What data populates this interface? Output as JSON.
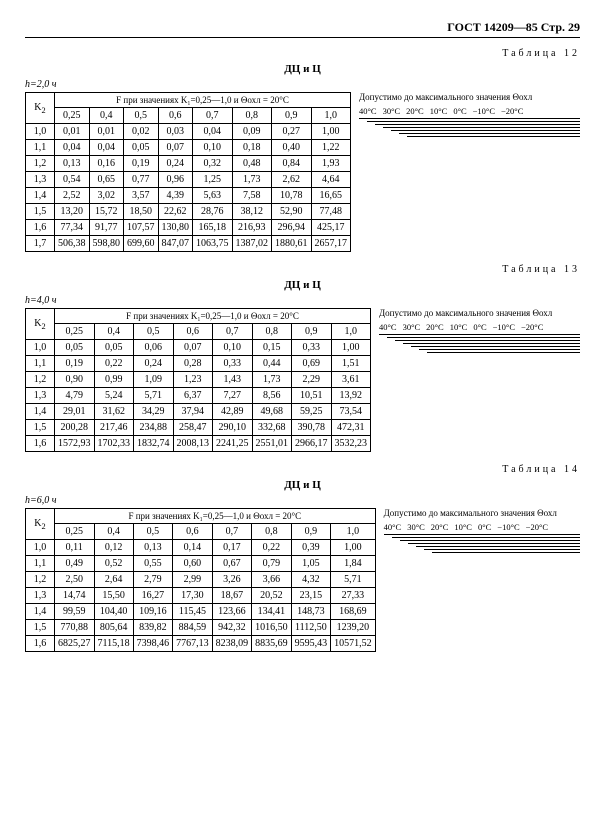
{
  "page": {
    "header": "ГОСТ 14209—85 Стр. 29"
  },
  "legend_text": "Допустимо до максимального значения Θохл",
  "temps": [
    "40°C",
    "30°C",
    "20°C",
    "10°C",
    "0°C",
    "−10°C",
    "−20°C"
  ],
  "tables": [
    {
      "label": "Таблица 12",
      "title": "ДЦ и Ц",
      "h": "h=2,0 ч",
      "fheader": "F при значениях K₁=0,25—1,0 и Θохл = 20°С",
      "cols": [
        "0,25",
        "0,4",
        "0,5",
        "0,6",
        "0,7",
        "0,8",
        "0,9",
        "1,0"
      ],
      "k2": [
        "1,0",
        "1,1",
        "1,2",
        "1,3",
        "1,4",
        "1,5",
        "1,6",
        "1,7"
      ],
      "rows": [
        [
          "0,01",
          "0,01",
          "0,02",
          "0,03",
          "0,04",
          "0,09",
          "0,27",
          "1,00"
        ],
        [
          "0,04",
          "0,04",
          "0,05",
          "0,07",
          "0,10",
          "0,18",
          "0,40",
          "1,22"
        ],
        [
          "0,13",
          "0,16",
          "0,19",
          "0,24",
          "0,32",
          "0,48",
          "0,84",
          "1,93"
        ],
        [
          "0,54",
          "0,65",
          "0,77",
          "0,96",
          "1,25",
          "1,73",
          "2,62",
          "4,64"
        ],
        [
          "2,52",
          "3,02",
          "3,57",
          "4,39",
          "5,63",
          "7,58",
          "10,78",
          "16,65"
        ],
        [
          "13,20",
          "15,72",
          "18,50",
          "22,62",
          "28,76",
          "38,12",
          "52,90",
          "77,48"
        ],
        [
          "77,34",
          "91,77",
          "107,57",
          "130,80",
          "165,18",
          "216,93",
          "296,94",
          "425,17"
        ],
        [
          "506,38",
          "598,80",
          "699,60",
          "847,07",
          "1063,75",
          "1387,02",
          "1880,61",
          "2657,17"
        ]
      ]
    },
    {
      "label": "Таблица 13",
      "title": "ДЦ и Ц",
      "h": "h=4,0 ч",
      "fheader": "F при значениях K₁=0,25—1,0 и Θохл = 20°С",
      "cols": [
        "0,25",
        "0,4",
        "0,5",
        "0,6",
        "0,7",
        "0,8",
        "0,9",
        "1,0"
      ],
      "k2": [
        "1,0",
        "1,1",
        "1,2",
        "1,3",
        "1,4",
        "1,5",
        "1,6"
      ],
      "rows": [
        [
          "0,05",
          "0,05",
          "0,06",
          "0,07",
          "0,10",
          "0,15",
          "0,33",
          "1,00"
        ],
        [
          "0,19",
          "0,22",
          "0,24",
          "0,28",
          "0,33",
          "0,44",
          "0,69",
          "1,51"
        ],
        [
          "0,90",
          "0,99",
          "1,09",
          "1,23",
          "1,43",
          "1,73",
          "2,29",
          "3,61"
        ],
        [
          "4,79",
          "5,24",
          "5,71",
          "6,37",
          "7,27",
          "8,56",
          "10,51",
          "13,92"
        ],
        [
          "29,01",
          "31,62",
          "34,29",
          "37,94",
          "42,89",
          "49,68",
          "59,25",
          "73,54"
        ],
        [
          "200,28",
          "217,46",
          "234,88",
          "258,47",
          "290,10",
          "332,68",
          "390,78",
          "472,31"
        ],
        [
          "1572,93",
          "1702,33",
          "1832,74",
          "2008,13",
          "2241,25",
          "2551,01",
          "2966,17",
          "3532,23"
        ]
      ]
    },
    {
      "label": "Таблица 14",
      "title": "ДЦ и Ц",
      "h": "h=6,0 ч",
      "fheader": "F при значениях K₁=0,25—1,0 и Θохл = 20°С",
      "cols": [
        "0,25",
        "0,4",
        "0,5",
        "0,6",
        "0,7",
        "0,8",
        "0,9",
        "1,0"
      ],
      "k2": [
        "1,0",
        "1,1",
        "1,2",
        "1,3",
        "1,4",
        "1,5",
        "1,6"
      ],
      "rows": [
        [
          "0,11",
          "0,12",
          "0,13",
          "0,14",
          "0,17",
          "0,22",
          "0,39",
          "1,00"
        ],
        [
          "0,49",
          "0,52",
          "0,55",
          "0,60",
          "0,67",
          "0,79",
          "1,05",
          "1,84"
        ],
        [
          "2,50",
          "2,64",
          "2,79",
          "2,99",
          "3,26",
          "3,66",
          "4,32",
          "5,71"
        ],
        [
          "14,74",
          "15,50",
          "16,27",
          "17,30",
          "18,67",
          "20,52",
          "23,15",
          "27,33"
        ],
        [
          "99,59",
          "104,40",
          "109,16",
          "115,45",
          "123,66",
          "134,41",
          "148,73",
          "168,69"
        ],
        [
          "770,88",
          "805,64",
          "839,82",
          "884,59",
          "942,32",
          "1016,50",
          "1112,50",
          "1239,20"
        ],
        [
          "6825,27",
          "7115,18",
          "7398,46",
          "7767,13",
          "8238,09",
          "8835,69",
          "9595,43",
          "10571,52"
        ]
      ]
    }
  ]
}
